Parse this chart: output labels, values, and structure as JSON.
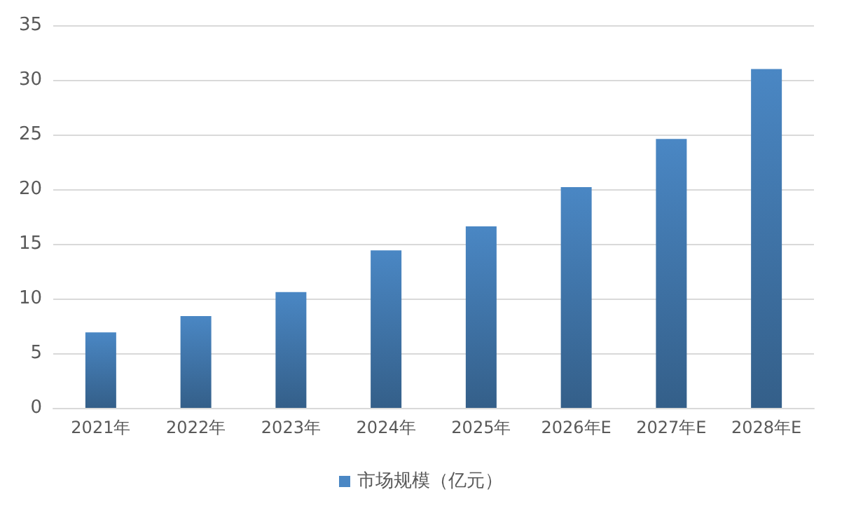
{
  "chart_data": {
    "type": "bar",
    "categories": [
      "2021年",
      "2022年",
      "2023年",
      "2024年",
      "2025年",
      "2026年E",
      "2027年E",
      "2028年E"
    ],
    "series": [
      {
        "name": "市场规模（亿元）",
        "color": "#4a87c4",
        "values": [
          6.9,
          8.4,
          10.6,
          14.4,
          16.6,
          20.2,
          24.6,
          31.0
        ]
      }
    ],
    "ylim": [
      0,
      35
    ],
    "yticks": [
      0,
      5,
      10,
      15,
      20,
      25,
      30,
      35
    ],
    "grid": "y",
    "legend": "bottom"
  }
}
